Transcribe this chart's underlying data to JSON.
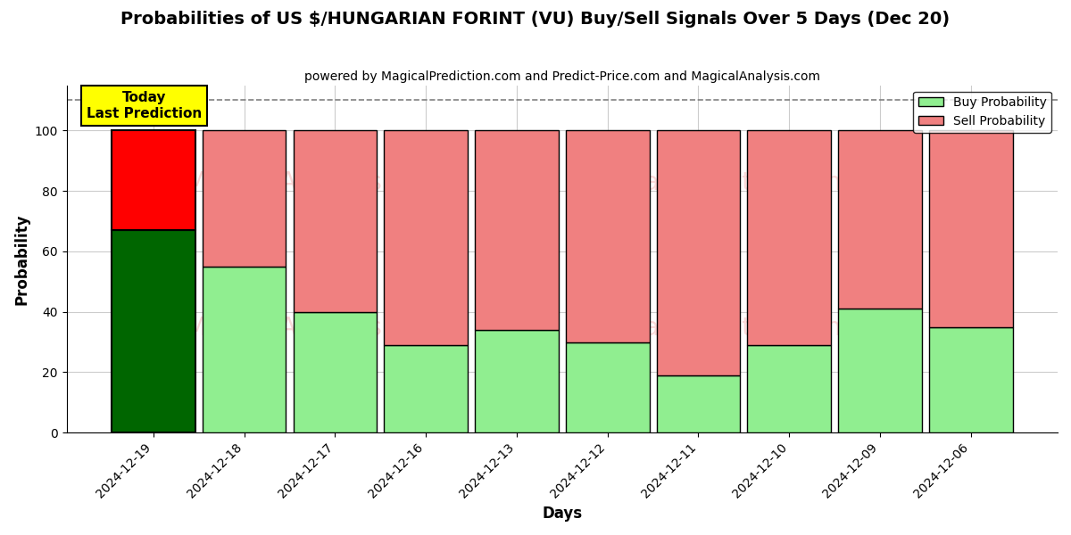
{
  "title": "Probabilities of US $/HUNGARIAN FORINT (VU) Buy/Sell Signals Over 5 Days (Dec 20)",
  "subtitle": "powered by MagicalPrediction.com and Predict-Price.com and MagicalAnalysis.com",
  "xlabel": "Days",
  "ylabel": "Probability",
  "categories": [
    "2024-12-19",
    "2024-12-18",
    "2024-12-17",
    "2024-12-16",
    "2024-12-13",
    "2024-12-12",
    "2024-12-11",
    "2024-12-10",
    "2024-12-09",
    "2024-12-06"
  ],
  "buy_values": [
    67,
    55,
    40,
    29,
    34,
    30,
    19,
    29,
    41,
    35
  ],
  "sell_values": [
    33,
    45,
    60,
    71,
    66,
    70,
    81,
    71,
    59,
    65
  ],
  "today_bar_buy_color": "#006600",
  "today_bar_sell_color": "#ff0000",
  "other_bar_buy_color": "#90ee90",
  "other_bar_sell_color": "#f08080",
  "annotation_text": "Today\nLast Prediction",
  "annotation_bg_color": "#ffff00",
  "annotation_border_color": "#000000",
  "legend_buy_color": "#90ee90",
  "legend_sell_color": "#f08080",
  "dashed_line_y": 110,
  "ylim": [
    0,
    115
  ],
  "yticks": [
    0,
    20,
    40,
    60,
    80,
    100
  ],
  "watermark_color": "#f08080",
  "background_color": "#ffffff",
  "grid_color": "#cccccc"
}
